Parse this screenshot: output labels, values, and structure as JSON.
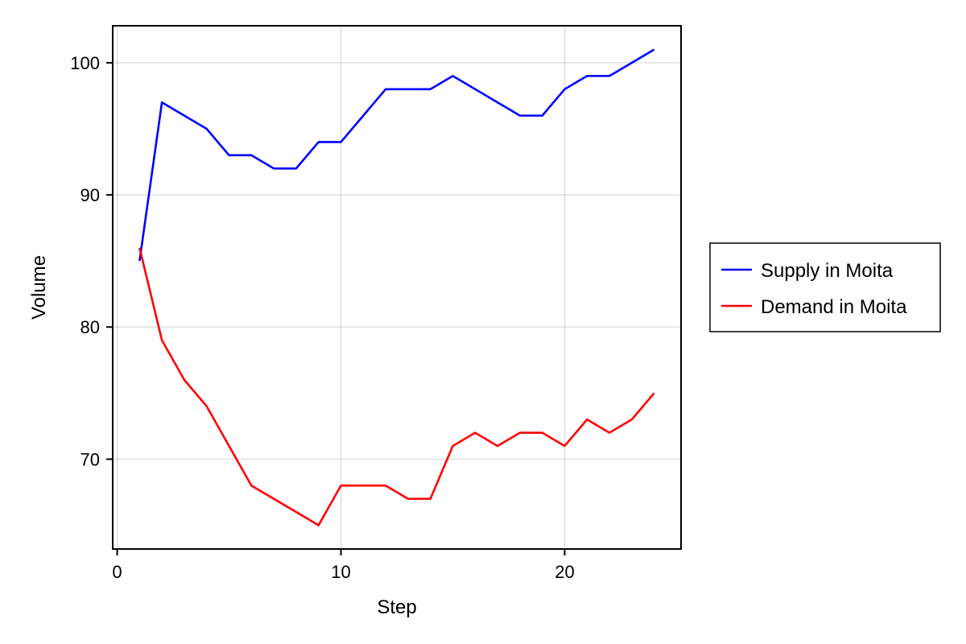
{
  "chart_data": {
    "type": "line",
    "xlabel": "Step",
    "ylabel": "Volume",
    "xlim": [
      -0.2,
      25.2
    ],
    "ylim": [
      63.2,
      102.8
    ],
    "xticks": [
      0,
      10,
      20
    ],
    "yticks": [
      70,
      80,
      90,
      100
    ],
    "grid": true,
    "legend_position": "right",
    "x": [
      1,
      2,
      3,
      4,
      5,
      6,
      7,
      8,
      9,
      10,
      11,
      12,
      13,
      14,
      15,
      16,
      17,
      18,
      19,
      20,
      21,
      22,
      23,
      24
    ],
    "series": [
      {
        "name": "Supply in Moita",
        "color": "#0000ff",
        "values": [
          85,
          97,
          96,
          95,
          93,
          93,
          92,
          92,
          94,
          94,
          96,
          98,
          98,
          98,
          99,
          98,
          97,
          96,
          96,
          98,
          99,
          99,
          100,
          101
        ]
      },
      {
        "name": "Demand in Moita",
        "color": "#ff0000",
        "values": [
          86,
          79,
          76,
          74,
          71,
          68,
          67,
          66,
          65,
          68,
          68,
          68,
          67,
          67,
          71,
          72,
          71,
          72,
          72,
          71,
          73,
          72,
          73,
          75
        ]
      }
    ]
  }
}
